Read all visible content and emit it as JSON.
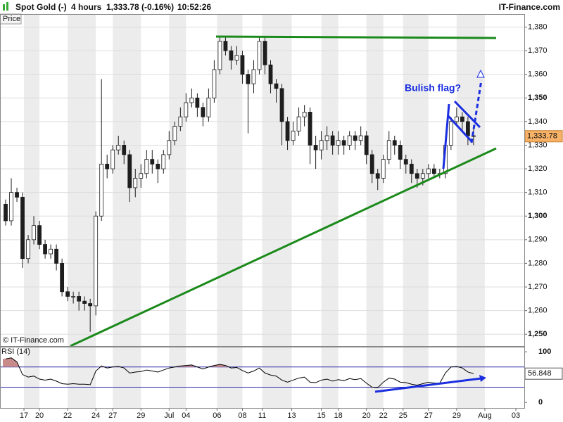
{
  "header": {
    "instrument": "Spot Gold (-)",
    "interval": "4 hours",
    "quote": "1,333.78 (-0.16%)",
    "time": "10:52:26",
    "brand": "IT-Finance.com"
  },
  "chart_data": [
    {
      "type": "candlestick",
      "title": "Price",
      "watermark": "© IT-Finance.com",
      "annotation": "Bulish flag?",
      "x": [
        1,
        2,
        3,
        4,
        5,
        6,
        7,
        8,
        9,
        10,
        11,
        12,
        13,
        14,
        15,
        16,
        17,
        18,
        19,
        20,
        21,
        22,
        23,
        24,
        25,
        26,
        27,
        28,
        29,
        30,
        31,
        32,
        33,
        34,
        35,
        36,
        37,
        38,
        39,
        40,
        41,
        42,
        43,
        44,
        45,
        46,
        47,
        48,
        49,
        50,
        51,
        52,
        53,
        54,
        55,
        56,
        57,
        58,
        59,
        60,
        61,
        62,
        63,
        64,
        65,
        66,
        67,
        68,
        69,
        70,
        71,
        72,
        73,
        74,
        75,
        76,
        77,
        78,
        79,
        80,
        81,
        82,
        83,
        84
      ],
      "open": [
        1305,
        1298,
        1310,
        1308,
        1282,
        1290,
        1296,
        1288,
        1284,
        1286,
        1280,
        1268,
        1266,
        1266,
        1264,
        1263,
        1262,
        1300,
        1322,
        1320,
        1328,
        1330,
        1326,
        1312,
        1316,
        1318,
        1324,
        1322,
        1320,
        1326,
        1332,
        1338,
        1342,
        1348,
        1350,
        1346,
        1342,
        1350,
        1362,
        1374,
        1370,
        1366,
        1368,
        1360,
        1356,
        1362,
        1374,
        1364,
        1356,
        1354,
        1340,
        1332,
        1336,
        1342,
        1344,
        1330,
        1328,
        1332,
        1334,
        1330,
        1332,
        1330,
        1334,
        1332,
        1334,
        1326,
        1318,
        1316,
        1324,
        1332,
        1330,
        1324,
        1322,
        1318,
        1316,
        1318,
        1320,
        1318,
        1318,
        1330,
        1340,
        1342,
        1340,
        1334
      ],
      "high": [
        1307,
        1316,
        1312,
        1310,
        1292,
        1300,
        1298,
        1290,
        1288,
        1288,
        1282,
        1270,
        1268,
        1268,
        1266,
        1265,
        1302,
        1358,
        1326,
        1330,
        1334,
        1332,
        1328,
        1320,
        1322,
        1328,
        1328,
        1324,
        1328,
        1336,
        1340,
        1346,
        1352,
        1354,
        1352,
        1348,
        1354,
        1366,
        1376,
        1376,
        1372,
        1372,
        1370,
        1362,
        1366,
        1376,
        1376,
        1366,
        1358,
        1356,
        1342,
        1340,
        1346,
        1347,
        1346,
        1334,
        1336,
        1338,
        1336,
        1336,
        1334,
        1336,
        1336,
        1338,
        1336,
        1328,
        1320,
        1326,
        1336,
        1334,
        1332,
        1326,
        1324,
        1320,
        1320,
        1322,
        1322,
        1320,
        1332,
        1342,
        1346,
        1344,
        1342,
        1337
      ],
      "low": [
        1296,
        1296,
        1306,
        1278,
        1280,
        1288,
        1286,
        1282,
        1282,
        1277,
        1266,
        1264,
        1263,
        1260,
        1260,
        1251,
        1258,
        1298,
        1316,
        1318,
        1326,
        1322,
        1306,
        1308,
        1312,
        1316,
        1318,
        1314,
        1318,
        1324,
        1330,
        1336,
        1340,
        1346,
        1342,
        1338,
        1340,
        1348,
        1360,
        1368,
        1362,
        1364,
        1356,
        1335,
        1352,
        1360,
        1360,
        1352,
        1348,
        1330,
        1328,
        1330,
        1334,
        1338,
        1322,
        1320,
        1324,
        1328,
        1326,
        1326,
        1326,
        1328,
        1328,
        1330,
        1322,
        1314,
        1311,
        1314,
        1322,
        1326,
        1320,
        1318,
        1314,
        1312,
        1313,
        1316,
        1316,
        1316,
        1316,
        1328,
        1338,
        1336,
        1330,
        1330
      ],
      "close": [
        1298,
        1310,
        1308,
        1282,
        1290,
        1296,
        1288,
        1284,
        1286,
        1280,
        1268,
        1266,
        1266,
        1264,
        1263,
        1262,
        1300,
        1322,
        1320,
        1328,
        1330,
        1326,
        1312,
        1316,
        1318,
        1324,
        1322,
        1320,
        1326,
        1332,
        1338,
        1342,
        1348,
        1350,
        1346,
        1342,
        1350,
        1362,
        1374,
        1370,
        1366,
        1368,
        1360,
        1356,
        1362,
        1374,
        1364,
        1356,
        1354,
        1340,
        1332,
        1336,
        1342,
        1344,
        1330,
        1328,
        1332,
        1334,
        1330,
        1332,
        1330,
        1334,
        1332,
        1334,
        1326,
        1318,
        1316,
        1324,
        1332,
        1330,
        1324,
        1322,
        1318,
        1316,
        1318,
        1320,
        1318,
        1318,
        1330,
        1340,
        1342,
        1340,
        1334,
        1333.78
      ],
      "colors": {
        "up": "#ffffff",
        "down": "#1e1e1e"
      },
      "xlim": [
        0,
        93
      ],
      "xticks": [
        {
          "value": 4.25,
          "label": "17"
        },
        {
          "value": 7,
          "label": "20"
        },
        {
          "value": 12,
          "label": "22"
        },
        {
          "value": 17,
          "label": "24"
        },
        {
          "value": 20,
          "label": "27"
        },
        {
          "value": 25,
          "label": "29"
        },
        {
          "value": 30,
          "label": "Jul"
        },
        {
          "value": 33,
          "label": "04"
        },
        {
          "value": 38.5,
          "label": "06"
        },
        {
          "value": 43,
          "label": "08"
        },
        {
          "value": 46.5,
          "label": "11"
        },
        {
          "value": 51.75,
          "label": "13"
        },
        {
          "value": 57,
          "label": "15"
        },
        {
          "value": 60,
          "label": "18"
        },
        {
          "value": 65,
          "label": "20"
        },
        {
          "value": 68,
          "label": "22"
        },
        {
          "value": 71.5,
          "label": "25"
        },
        {
          "value": 76,
          "label": "27"
        },
        {
          "value": 81,
          "label": "29"
        },
        {
          "value": 86,
          "label": "Aug"
        },
        {
          "value": 91.5,
          "label": "03"
        }
      ],
      "ylim": [
        1245,
        1385.5
      ],
      "yticks": [
        {
          "value": 1250,
          "label": "1,250"
        },
        {
          "value": 1260,
          "label": "1,260"
        },
        {
          "value": 1270,
          "label": "1,270"
        },
        {
          "value": 1280,
          "label": "1,280"
        },
        {
          "value": 1290,
          "label": "1,290"
        },
        {
          "value": 1300,
          "label": "1,300"
        },
        {
          "value": 1310,
          "label": "1,310"
        },
        {
          "value": 1320,
          "label": "1,320"
        },
        {
          "value": 1330,
          "label": "1,330"
        },
        {
          "value": 1340,
          "label": "1,340"
        },
        {
          "value": 1350,
          "label": "1,350"
        },
        {
          "value": 1360,
          "label": "1,360"
        },
        {
          "value": 1370,
          "label": "1,370"
        },
        {
          "value": 1380,
          "label": "1,380"
        }
      ],
      "price_badge": {
        "value": 1333.78,
        "label": "1,333.78"
      }
    },
    {
      "type": "line",
      "title": "RSI (14)",
      "color": "#000000",
      "values": [
        86,
        88,
        80,
        55,
        50,
        52,
        46,
        44,
        46,
        42,
        37,
        36,
        37,
        36,
        36,
        35,
        62,
        72,
        68,
        70,
        71,
        68,
        58,
        60,
        61,
        64,
        62,
        60,
        64,
        68,
        70,
        72,
        73,
        74,
        70,
        66,
        70,
        73,
        75,
        73,
        68,
        69,
        63,
        58,
        62,
        68,
        58,
        54,
        52,
        44,
        40,
        44,
        48,
        50,
        40,
        39,
        44,
        46,
        42,
        45,
        43,
        47,
        45,
        47,
        38,
        30,
        29,
        40,
        48,
        46,
        40,
        39,
        36,
        34,
        37,
        40,
        38,
        38,
        58,
        70,
        71,
        68,
        60,
        56.848
      ],
      "ylim": [
        -11,
        110
      ],
      "yticks": [
        0,
        100
      ],
      "levels": [
        30,
        70
      ],
      "last_value": 56.848
    }
  ]
}
